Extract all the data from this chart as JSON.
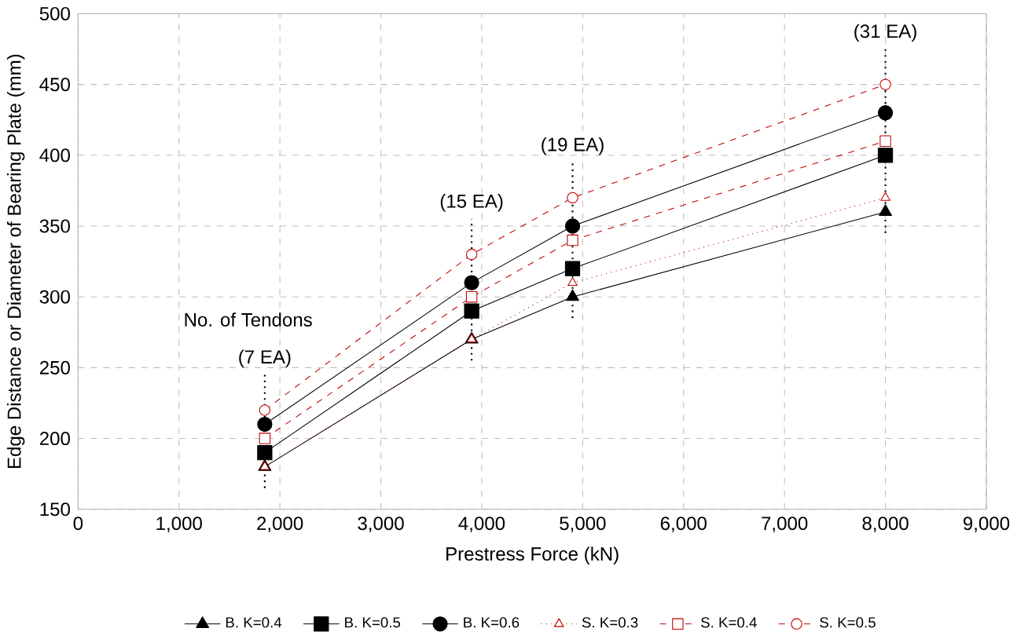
{
  "chart_data": {
    "type": "line",
    "xlabel": "Prestress Force (kN)",
    "ylabel": "Edge Distance or Diameter of Bearing Plate (mm)",
    "x": [
      1850,
      3900,
      4900,
      8000
    ],
    "xlim": [
      0,
      9000
    ],
    "xticks": [
      0,
      {
        "value": 1000,
        "label": "1,000"
      },
      {
        "value": 2000,
        "label": "2,000"
      },
      {
        "value": 3000,
        "label": "3,000"
      },
      {
        "value": 4000,
        "label": "4,000"
      },
      {
        "value": 5000,
        "label": "5,000"
      },
      {
        "value": 6000,
        "label": "6,000"
      },
      {
        "value": 7000,
        "label": "7,000"
      },
      {
        "value": 8000,
        "label": "8,000"
      },
      {
        "value": 9000,
        "label": "9,000"
      }
    ],
    "ylim": [
      150,
      500
    ],
    "yticks": [
      150,
      200,
      250,
      300,
      350,
      400,
      450,
      500
    ],
    "grid": true,
    "legend": "bottom",
    "series": [
      {
        "name": "B. K=0.4",
        "color": "#000000",
        "marker": "triangle",
        "line_style": "solid",
        "values": [
          180,
          270,
          300,
          360
        ]
      },
      {
        "name": "B. K=0.5",
        "color": "#000000",
        "marker": "square",
        "line_style": "solid",
        "values": [
          190,
          290,
          320,
          400
        ]
      },
      {
        "name": "B. K=0.6",
        "color": "#000000",
        "marker": "circle",
        "line_style": "solid",
        "values": [
          210,
          310,
          350,
          430
        ]
      },
      {
        "name": "S. K=0.3",
        "color": "#c00000",
        "marker": "triangle",
        "line_style": "dotted",
        "values": [
          180,
          270,
          310,
          370
        ]
      },
      {
        "name": "S. K=0.4",
        "color": "#c00000",
        "marker": "square",
        "line_style": "dashed",
        "values": [
          200,
          300,
          340,
          410
        ]
      },
      {
        "name": "S. K=0.5",
        "color": "#c00000",
        "marker": "circle",
        "line_style": "dashed",
        "values": [
          220,
          330,
          370,
          450
        ]
      }
    ],
    "ref_lines": [
      {
        "axis": "x",
        "value": 1850,
        "label": "(7 EA)",
        "line_style": "dotted",
        "color": "#000000"
      },
      {
        "axis": "x",
        "value": 3900,
        "label": "(15 EA)",
        "line_style": "dotted",
        "color": "#000000"
      },
      {
        "axis": "x",
        "value": 4900,
        "label": "(19 EA)",
        "line_style": "dotted",
        "color": "#000000"
      },
      {
        "axis": "x",
        "value": 8000,
        "label": "(31 EA)",
        "line_style": "dotted",
        "color": "#000000"
      }
    ],
    "annotations": [
      "No. of Tendons"
    ]
  }
}
